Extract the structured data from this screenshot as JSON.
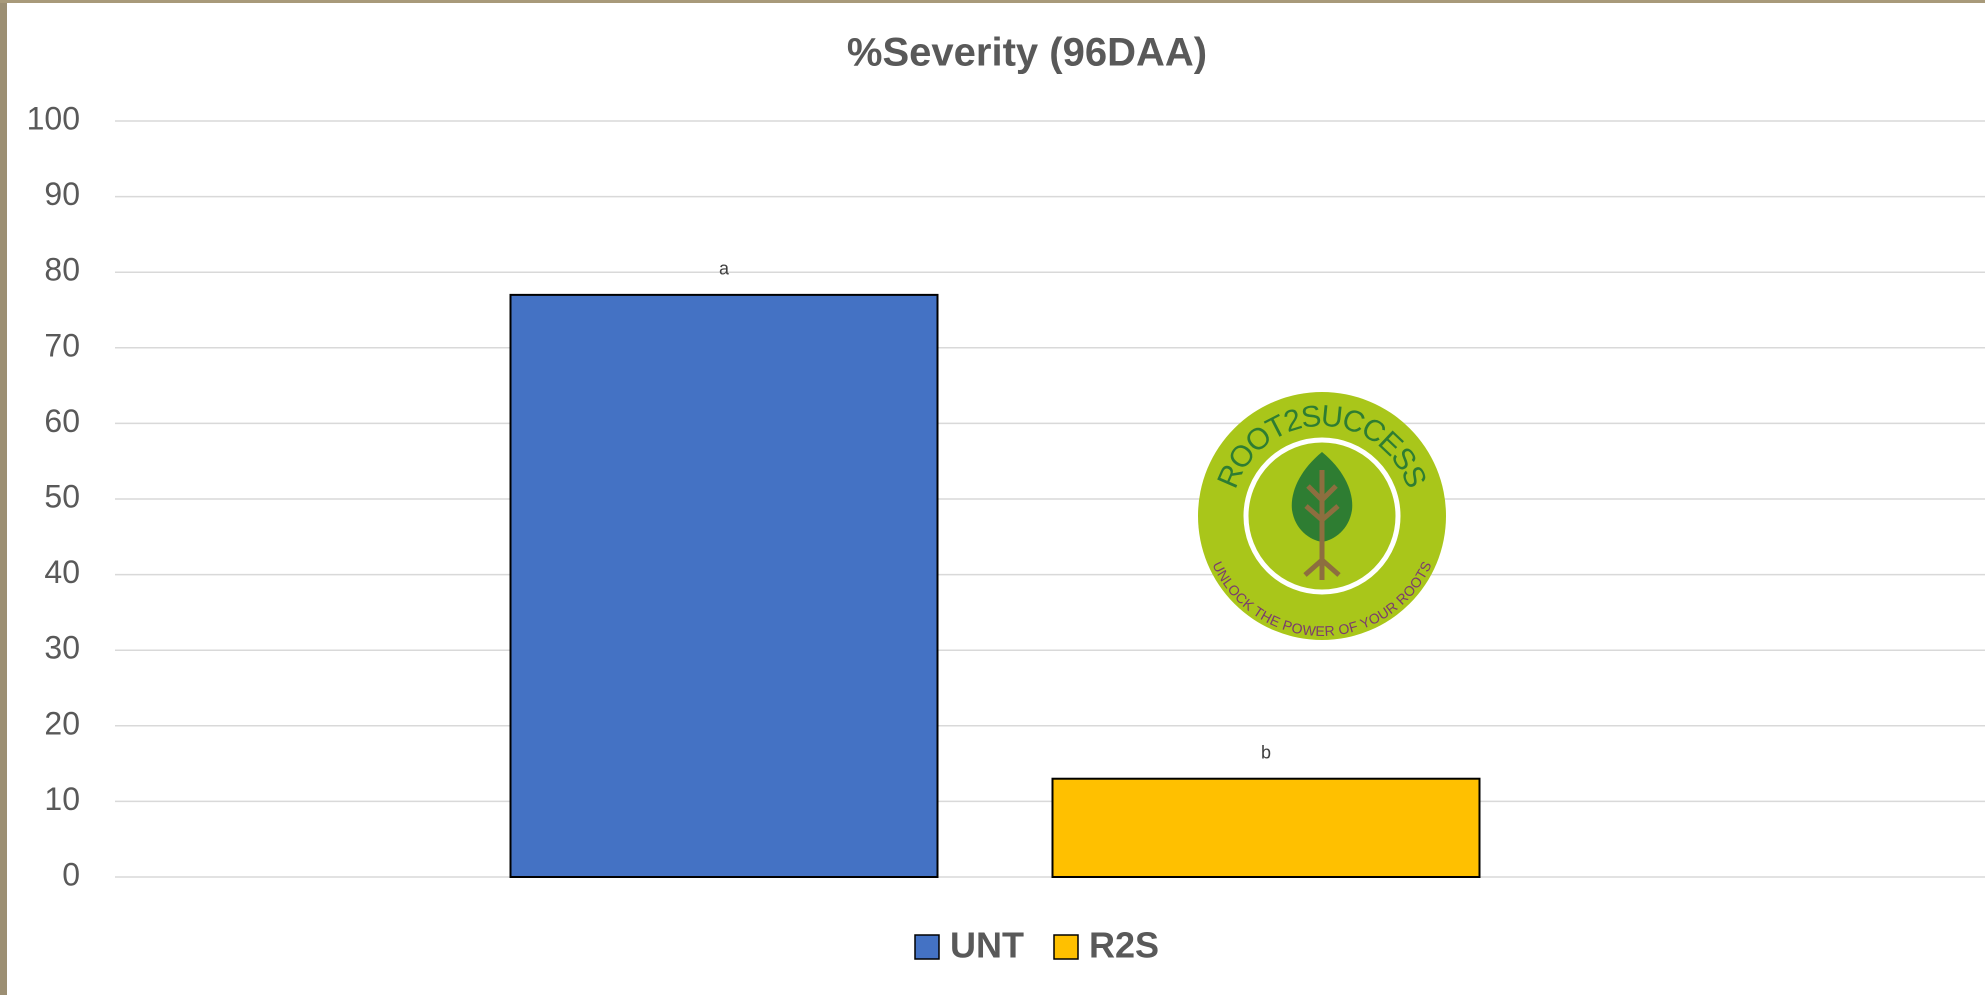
{
  "chart_data": {
    "type": "bar",
    "title": "%Severity (96DAA)",
    "categories": [
      null
    ],
    "series": [
      {
        "name": "UNT",
        "color": "#4472c4",
        "values": [
          77
        ],
        "annotation": "a"
      },
      {
        "name": "R2S",
        "color": "#ffc000",
        "values": [
          13
        ],
        "annotation": "b"
      }
    ],
    "ylim": [
      0,
      100
    ],
    "yticks": [
      0,
      10,
      20,
      30,
      40,
      50,
      60,
      70,
      80,
      90,
      100
    ],
    "grid": true,
    "legend": "bottom"
  },
  "logo": {
    "title": "ROOT2SUCCESS",
    "tagline": "UNLOCK THE POWER OF YOUR ROOTS"
  }
}
